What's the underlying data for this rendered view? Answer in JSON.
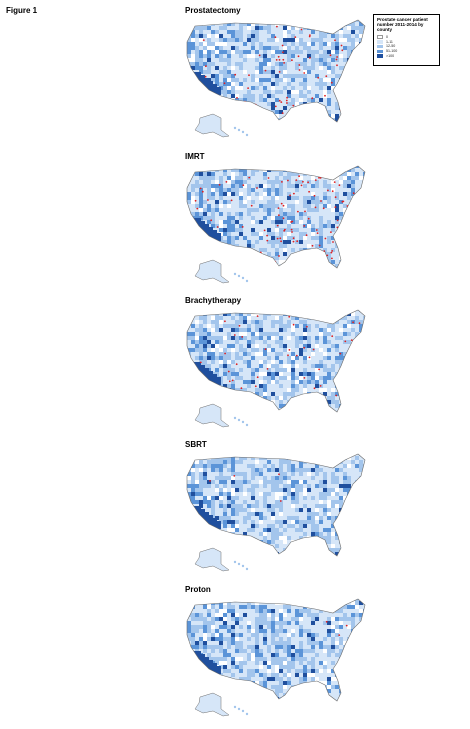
{
  "figure_label": "Figure 1",
  "legend": {
    "title": "Prostate cancer patient number 2011-2014 by county",
    "bins": [
      {
        "label": "0",
        "color": "#ffffff"
      },
      {
        "label": "1-11",
        "color": "#d6e6f8"
      },
      {
        "label": "12-50",
        "color": "#a3c5ec"
      },
      {
        "label": "51-100",
        "color": "#5b94d8"
      },
      {
        "label": ">100",
        "color": "#1f4f9e"
      }
    ]
  },
  "panels": [
    {
      "title": "Prostatectomy"
    },
    {
      "title": "IMRT"
    },
    {
      "title": "Brachytherapy"
    },
    {
      "title": "SBRT"
    },
    {
      "title": "Proton"
    }
  ],
  "colors": {
    "state_border": "#6d6d6d",
    "county_fill_light": "#d6e6f8",
    "county_fill_mid": "#a3c5ec",
    "county_fill_dark": "#1f4f9e",
    "facility_marker": "#e02020"
  }
}
